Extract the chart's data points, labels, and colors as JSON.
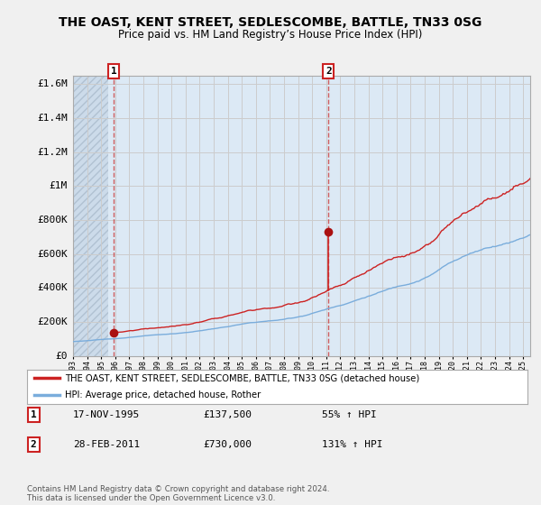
{
  "title": "THE OAST, KENT STREET, SEDLESCOMBE, BATTLE, TN33 0SG",
  "subtitle": "Price paid vs. HM Land Registry’s House Price Index (HPI)",
  "ylabel_ticks": [
    "£0",
    "£200K",
    "£400K",
    "£600K",
    "£800K",
    "£1M",
    "£1.2M",
    "£1.4M",
    "£1.6M"
  ],
  "ylabel_values": [
    0,
    200000,
    400000,
    600000,
    800000,
    1000000,
    1200000,
    1400000,
    1600000
  ],
  "ylim": [
    0,
    1650000
  ],
  "xlim_start": 1993.0,
  "xlim_end": 2025.5,
  "sale1_x": 1995.88,
  "sale1_y": 137500,
  "sale1_label": "1",
  "sale1_date": "17-NOV-1995",
  "sale1_price": "£137,500",
  "sale1_hpi": "55% ↑ HPI",
  "sale2_x": 2011.16,
  "sale2_y": 730000,
  "sale2_label": "2",
  "sale2_date": "28-FEB-2011",
  "sale2_price": "£730,000",
  "sale2_hpi": "131% ↑ HPI",
  "red_line_color": "#cc2222",
  "blue_line_color": "#7aaddc",
  "dot_color": "#aa1111",
  "grid_color": "#cccccc",
  "bg_color": "#f0f0f0",
  "plot_bg_color": "#dce9f5",
  "hatch_bg_color": "#c8d5e0",
  "legend_label_red": "THE OAST, KENT STREET, SEDLESCOMBE, BATTLE, TN33 0SG (detached house)",
  "legend_label_blue": "HPI: Average price, detached house, Rother",
  "footer": "Contains HM Land Registry data © Crown copyright and database right 2024.\nThis data is licensed under the Open Government Licence v3.0."
}
